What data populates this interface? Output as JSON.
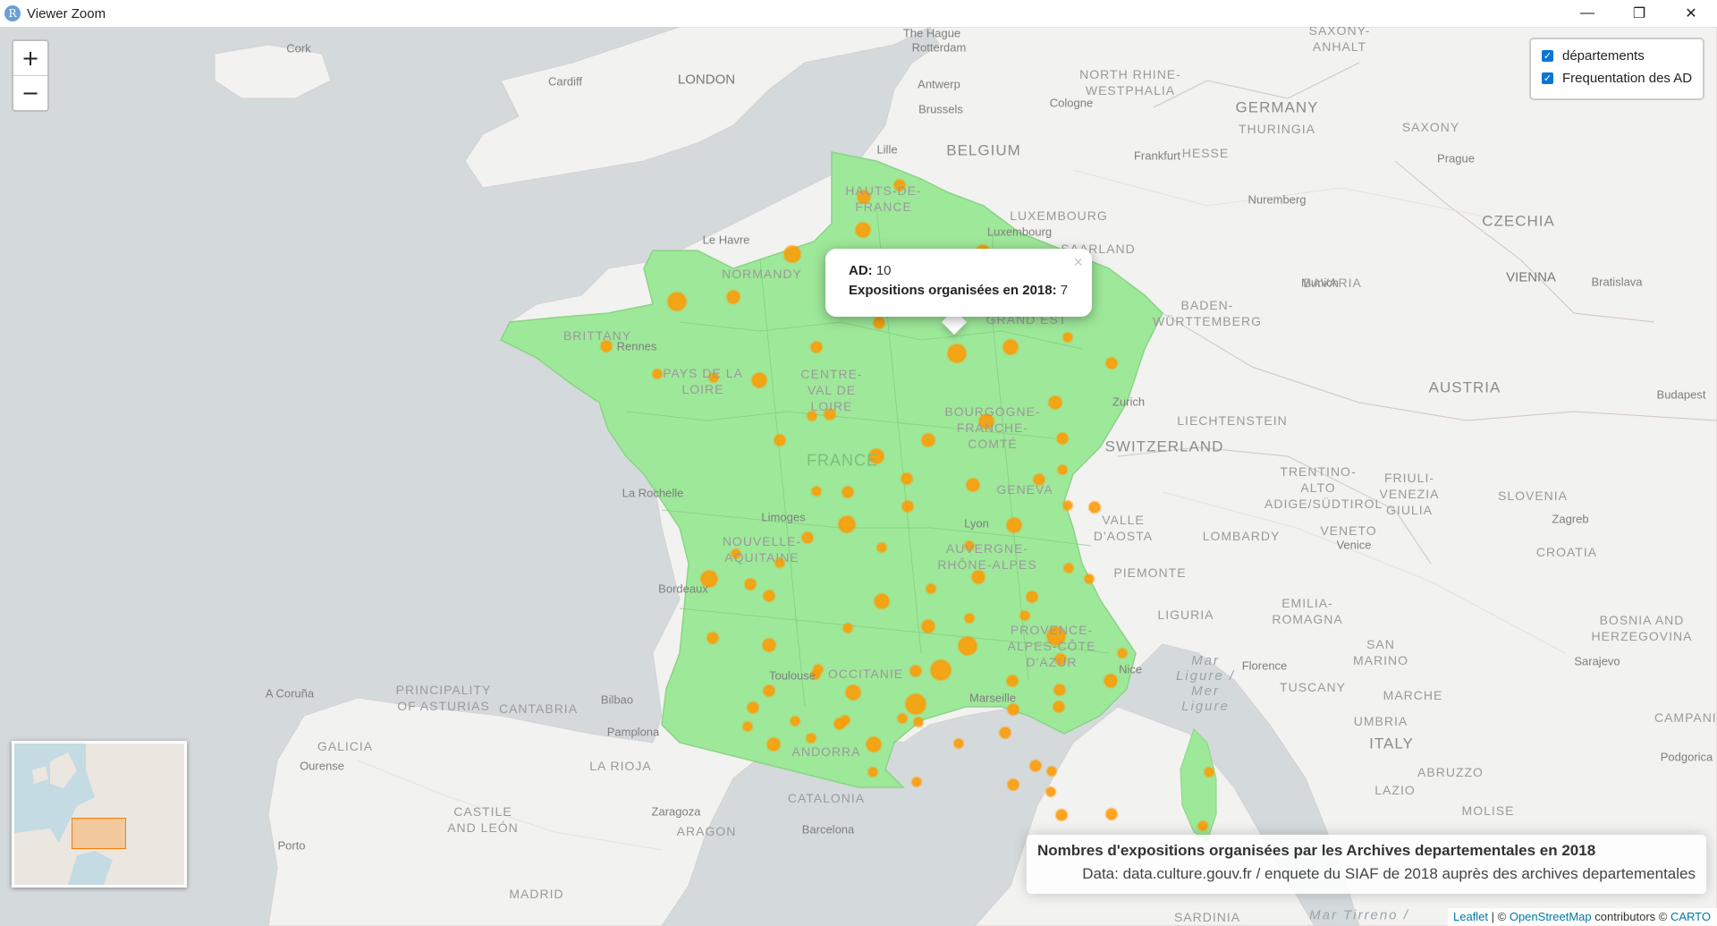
{
  "window": {
    "icon_letter": "R",
    "title": "Viewer Zoom",
    "minimize": "—",
    "maximize": "❐",
    "close": "✕"
  },
  "zoom": {
    "in": "+",
    "out": "−"
  },
  "layers": [
    {
      "label": "départements",
      "checked": true
    },
    {
      "label": "Frequentation des AD",
      "checked": true
    }
  ],
  "popup": {
    "close": "×",
    "fields": [
      {
        "key": "AD:",
        "value": " 10"
      },
      {
        "key": "Expositions organisées en 2018:",
        "value": " 7"
      }
    ]
  },
  "info": {
    "title": "Nombres d'expositions organisées par les Archives departementales en 2018",
    "subtitle": "Data: data.culture.gouv.fr / enquete du SIAF de 2018 auprès des archives departementales"
  },
  "attribution": {
    "leaflet": "Leaflet",
    "sep1": " | © ",
    "osm": "OpenStreetMap",
    "contrib": " contributors © ",
    "carto": "CARTO"
  },
  "colors": {
    "land": "#f2f2f0",
    "sea": "#d4dadc",
    "france_fill": "#9ee89a",
    "marker": "#ff9900"
  },
  "map_labels": {
    "countries": [
      "BELGIUM",
      "GERMANY",
      "FRANCE",
      "SWITZERLAND",
      "LIECHTENSTEIN",
      "LUXEMBOURG",
      "AUSTRIA",
      "CZECHIA",
      "SLOVENIA",
      "CROATIA",
      "BOSNIA AND HERZEGOVINA",
      "SAN MARINO",
      "ITALY",
      "ANDORRA"
    ],
    "regions": [
      "NORTH RHINE-WESTPHALIA",
      "SAXONY-ANHALT",
      "HESSE",
      "THURINGIA",
      "SAXONY",
      "SAARLAND",
      "BADEN-WÜRTTEMBERG",
      "BAVARIA",
      "BRITTANY",
      "NORMANDY",
      "HAUTS-DE-FRANCE",
      "GRAND EST",
      "PAYS DE LA LOIRE",
      "CENTRE-VAL DE LOIRE",
      "BOURGOGNE-FRANCHE-COMTÉ",
      "NOUVELLE-AQUITAINE",
      "AUVERGNE-RHÔNE-ALPES",
      "OCCITANIE",
      "PROVENCE-ALPES-CÔTE D'AZUR",
      "TRENTINO-ALTO ADIGE/SÜDTIROL",
      "FRIULI-VENEZIA GIULIA",
      "VALLE D'AOSTA",
      "LOMBARDY",
      "VENETO",
      "PIEMONTE",
      "EMILIA-ROMAGNA",
      "LIGURIA",
      "TUSCANY",
      "MARCHE",
      "UMBRIA",
      "ABRUZZO",
      "LAZIO",
      "MOLISE",
      "PRINCIPALITY OF ASTURIAS",
      "CANTABRIA",
      "GALICIA",
      "LA RIOJA",
      "CASTILE AND LEÓN",
      "ARAGON",
      "CATALONIA",
      "MADRID",
      "SARDINIA",
      "CAMPANIA"
    ],
    "cities": [
      "Cork",
      "Cardiff",
      "LONDON",
      "The Hague",
      "Rotterdam",
      "Antwerp",
      "Brussels",
      "Lille",
      "Cologne",
      "Frankfurt",
      "Prague",
      "Nuremberg",
      "Munich",
      "VIENNA",
      "Bratislava",
      "Budapest",
      "Le Havre",
      "Rennes",
      "Luxembourg",
      "Zurich",
      "Geneva",
      "Lyon",
      "Limoges",
      "La Rochelle",
      "Bordeaux",
      "Toulouse",
      "Marseille",
      "Nice",
      "Venice",
      "Zagreb",
      "Sarajevo",
      "Florence",
      "A Coruña",
      "Ourense",
      "Bilbao",
      "Pamplona",
      "Zaragoza",
      "Barcelona",
      "Porto",
      "Podgorica"
    ],
    "seas": [
      "Mar Ligure / Mer Ligure",
      "Mar Tirreno /"
    ]
  },
  "markers_count": 96
}
